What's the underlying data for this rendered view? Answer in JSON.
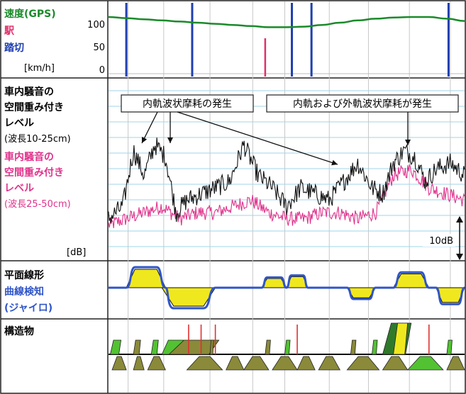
{
  "colors": {
    "speed": "#1a8a2a",
    "station": "#e0306a",
    "crossing": "#1f3fb0",
    "noise_short": "#111111",
    "noise_long": "#e0338c",
    "gyro": "#2f55c8",
    "alignment_fill": "#f0e81e",
    "grid": "#9fd6e8",
    "struct_dark": "#8a8a3a",
    "struct_green": "#52c232",
    "struct_darkgreen": "#2f7a2a",
    "struct_red": "#e03030"
  },
  "panel1": {
    "label_speed": "速度(GPS)",
    "label_station": "駅",
    "label_crossing": "踏切",
    "unit": "[km/h]",
    "ticks": [
      "100",
      "50",
      "0"
    ]
  },
  "panel2": {
    "label_short_lines": [
      "車内騒音の",
      "空間重み付き",
      "レベル",
      "(波長10-25cm)"
    ],
    "label_long_lines": [
      "車内騒音の",
      "空間重み付き",
      "レベル",
      "(波長25-50cm)"
    ],
    "unit": "[dB]",
    "scale_label": "10dB",
    "annotation_inner": "内軌波状摩耗の発生",
    "annotation_both": "内軌および外軌波状摩耗が発生"
  },
  "panel3": {
    "label_alignment": "平面線形",
    "label_gyro_lines": [
      "曲線検知",
      "(ジャイロ)"
    ]
  },
  "panel4": {
    "label": "構造物"
  },
  "chart_data": {
    "type": "line",
    "x_range": [
      0,
      100
    ],
    "speed_ylim": [
      0,
      120
    ],
    "speed": {
      "x": [
        0,
        5,
        10,
        15,
        20,
        25,
        30,
        35,
        40,
        45,
        50,
        55,
        60,
        65,
        70,
        75,
        80,
        85,
        90,
        95,
        100
      ],
      "y": [
        100,
        98,
        96,
        94,
        92,
        90,
        88,
        86,
        84,
        82,
        82,
        83,
        86,
        90,
        94,
        97,
        99,
        100,
        100,
        97,
        93
      ]
    },
    "crossings_x": [
      5,
      23.5,
      51.5,
      57,
      95.5
    ],
    "stations_x": [
      44
    ],
    "noise_short": {
      "x": [
        0,
        4,
        7,
        10,
        13,
        16,
        19,
        22,
        26,
        30,
        34,
        38,
        42,
        46,
        50,
        54,
        58,
        62,
        66,
        70,
        74,
        77,
        80,
        83,
        86,
        89,
        92,
        96,
        100
      ],
      "y": [
        3,
        5,
        14,
        10,
        15,
        13,
        4,
        6,
        7,
        8,
        9,
        15,
        10,
        8,
        5,
        8,
        7,
        6,
        9,
        12,
        8,
        7,
        12,
        14,
        13,
        9,
        11,
        12,
        10
      ]
    },
    "noise_long": {
      "x": [
        0,
        5,
        10,
        15,
        20,
        25,
        30,
        35,
        40,
        45,
        50,
        55,
        60,
        65,
        70,
        75,
        80,
        85,
        90,
        95,
        100
      ],
      "y": [
        2,
        3,
        4,
        5,
        3,
        4,
        4,
        5,
        6,
        4,
        3,
        3,
        4,
        4,
        3,
        4,
        10,
        11,
        8,
        7,
        6
      ]
    },
    "alignment_curves": [
      {
        "type": "left",
        "x_start": 5,
        "x_end": 16,
        "level": 1.0
      },
      {
        "type": "right",
        "x_start": 15,
        "x_end": 30,
        "level": -1.0
      },
      {
        "type": "left",
        "x_start": 43,
        "x_end": 50,
        "level": 0.5
      },
      {
        "type": "left",
        "x_start": 50,
        "x_end": 56,
        "level": 0.6
      },
      {
        "type": "right",
        "x_start": 67,
        "x_end": 75,
        "level": -0.55
      },
      {
        "type": "left",
        "x_start": 80,
        "x_end": 90,
        "level": 0.75
      },
      {
        "type": "right",
        "x_start": 92,
        "x_end": 100,
        "level": -0.8
      }
    ],
    "structures": {
      "upper": [
        {
          "x": 0.5,
          "w": 3,
          "kind": "green"
        },
        {
          "x": 7,
          "w": 2,
          "kind": "dark"
        },
        {
          "x": 12,
          "w": 2,
          "kind": "green"
        },
        {
          "x": 15,
          "w": 6,
          "kind": "green"
        },
        {
          "x": 17,
          "w": 14,
          "kind": "dark"
        },
        {
          "x": 28.5,
          "w": 1,
          "kind": "dark"
        },
        {
          "x": 44,
          "w": 1.5,
          "kind": "dark"
        },
        {
          "x": 49.5,
          "w": 1.5,
          "kind": "green"
        },
        {
          "x": 68,
          "w": 1.5,
          "kind": "dark"
        },
        {
          "x": 74,
          "w": 1.5,
          "kind": "green"
        },
        {
          "x": 77,
          "w": 8,
          "kind": "darkgreen"
        },
        {
          "x": 80,
          "w": 4,
          "kind": "yellow"
        },
        {
          "x": 95,
          "w": 1.5,
          "kind": "green"
        }
      ],
      "lower": [
        {
          "x": 1,
          "w": 4,
          "kind": "dark"
        },
        {
          "x": 7,
          "w": 3,
          "kind": "dark"
        },
        {
          "x": 11,
          "w": 5,
          "kind": "dark"
        },
        {
          "x": 22,
          "w": 10,
          "kind": "dark"
        },
        {
          "x": 33,
          "w": 5,
          "kind": "dark"
        },
        {
          "x": 38,
          "w": 7,
          "kind": "dark"
        },
        {
          "x": 46,
          "w": 7,
          "kind": "dark"
        },
        {
          "x": 53,
          "w": 5,
          "kind": "dark"
        },
        {
          "x": 59,
          "w": 6,
          "kind": "dark"
        },
        {
          "x": 67,
          "w": 9,
          "kind": "dark"
        },
        {
          "x": 77,
          "w": 7,
          "kind": "dark"
        },
        {
          "x": 84,
          "w": 10,
          "kind": "green"
        },
        {
          "x": 95,
          "w": 5,
          "kind": "dark"
        }
      ],
      "red_marks_x": [
        22.5,
        26,
        30,
        53,
        90
      ]
    }
  }
}
